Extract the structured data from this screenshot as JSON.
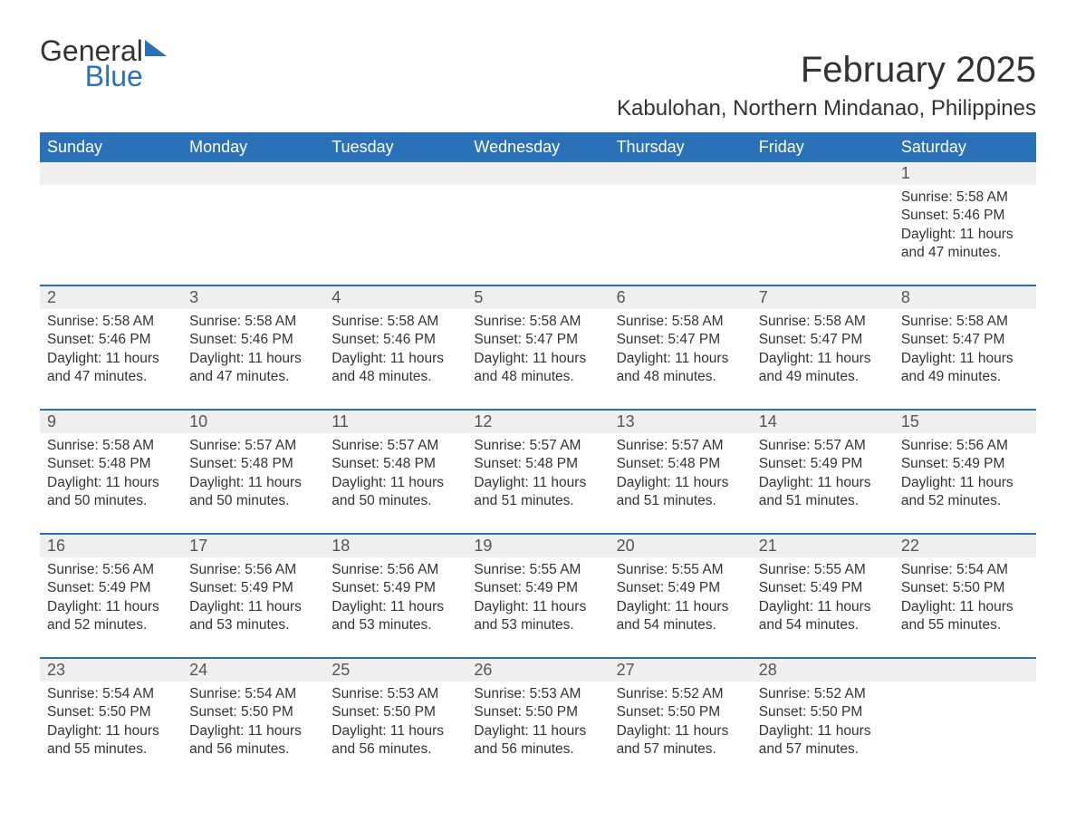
{
  "logo": {
    "word1": "General",
    "word2": "Blue"
  },
  "title": "February 2025",
  "location": "Kabulohan, Northern Mindanao, Philippines",
  "colors": {
    "brand_blue": "#2b71b8",
    "header_bg": "#2b71b8",
    "daynum_bg": "#efefef",
    "text": "#333333",
    "background": "#ffffff"
  },
  "weekdays": [
    "Sunday",
    "Monday",
    "Tuesday",
    "Wednesday",
    "Thursday",
    "Friday",
    "Saturday"
  ],
  "weeks": [
    [
      null,
      null,
      null,
      null,
      null,
      null,
      {
        "n": "1",
        "sr": "5:58 AM",
        "ss": "5:46 PM",
        "dl": "11 hours and 47 minutes."
      }
    ],
    [
      {
        "n": "2",
        "sr": "5:58 AM",
        "ss": "5:46 PM",
        "dl": "11 hours and 47 minutes."
      },
      {
        "n": "3",
        "sr": "5:58 AM",
        "ss": "5:46 PM",
        "dl": "11 hours and 47 minutes."
      },
      {
        "n": "4",
        "sr": "5:58 AM",
        "ss": "5:46 PM",
        "dl": "11 hours and 48 minutes."
      },
      {
        "n": "5",
        "sr": "5:58 AM",
        "ss": "5:47 PM",
        "dl": "11 hours and 48 minutes."
      },
      {
        "n": "6",
        "sr": "5:58 AM",
        "ss": "5:47 PM",
        "dl": "11 hours and 48 minutes."
      },
      {
        "n": "7",
        "sr": "5:58 AM",
        "ss": "5:47 PM",
        "dl": "11 hours and 49 minutes."
      },
      {
        "n": "8",
        "sr": "5:58 AM",
        "ss": "5:47 PM",
        "dl": "11 hours and 49 minutes."
      }
    ],
    [
      {
        "n": "9",
        "sr": "5:58 AM",
        "ss": "5:48 PM",
        "dl": "11 hours and 50 minutes."
      },
      {
        "n": "10",
        "sr": "5:57 AM",
        "ss": "5:48 PM",
        "dl": "11 hours and 50 minutes."
      },
      {
        "n": "11",
        "sr": "5:57 AM",
        "ss": "5:48 PM",
        "dl": "11 hours and 50 minutes."
      },
      {
        "n": "12",
        "sr": "5:57 AM",
        "ss": "5:48 PM",
        "dl": "11 hours and 51 minutes."
      },
      {
        "n": "13",
        "sr": "5:57 AM",
        "ss": "5:48 PM",
        "dl": "11 hours and 51 minutes."
      },
      {
        "n": "14",
        "sr": "5:57 AM",
        "ss": "5:49 PM",
        "dl": "11 hours and 51 minutes."
      },
      {
        "n": "15",
        "sr": "5:56 AM",
        "ss": "5:49 PM",
        "dl": "11 hours and 52 minutes."
      }
    ],
    [
      {
        "n": "16",
        "sr": "5:56 AM",
        "ss": "5:49 PM",
        "dl": "11 hours and 52 minutes."
      },
      {
        "n": "17",
        "sr": "5:56 AM",
        "ss": "5:49 PM",
        "dl": "11 hours and 53 minutes."
      },
      {
        "n": "18",
        "sr": "5:56 AM",
        "ss": "5:49 PM",
        "dl": "11 hours and 53 minutes."
      },
      {
        "n": "19",
        "sr": "5:55 AM",
        "ss": "5:49 PM",
        "dl": "11 hours and 53 minutes."
      },
      {
        "n": "20",
        "sr": "5:55 AM",
        "ss": "5:49 PM",
        "dl": "11 hours and 54 minutes."
      },
      {
        "n": "21",
        "sr": "5:55 AM",
        "ss": "5:49 PM",
        "dl": "11 hours and 54 minutes."
      },
      {
        "n": "22",
        "sr": "5:54 AM",
        "ss": "5:50 PM",
        "dl": "11 hours and 55 minutes."
      }
    ],
    [
      {
        "n": "23",
        "sr": "5:54 AM",
        "ss": "5:50 PM",
        "dl": "11 hours and 55 minutes."
      },
      {
        "n": "24",
        "sr": "5:54 AM",
        "ss": "5:50 PM",
        "dl": "11 hours and 56 minutes."
      },
      {
        "n": "25",
        "sr": "5:53 AM",
        "ss": "5:50 PM",
        "dl": "11 hours and 56 minutes."
      },
      {
        "n": "26",
        "sr": "5:53 AM",
        "ss": "5:50 PM",
        "dl": "11 hours and 56 minutes."
      },
      {
        "n": "27",
        "sr": "5:52 AM",
        "ss": "5:50 PM",
        "dl": "11 hours and 57 minutes."
      },
      {
        "n": "28",
        "sr": "5:52 AM",
        "ss": "5:50 PM",
        "dl": "11 hours and 57 minutes."
      },
      null
    ]
  ],
  "labels": {
    "sunrise": "Sunrise: ",
    "sunset": "Sunset: ",
    "daylight": "Daylight: "
  }
}
